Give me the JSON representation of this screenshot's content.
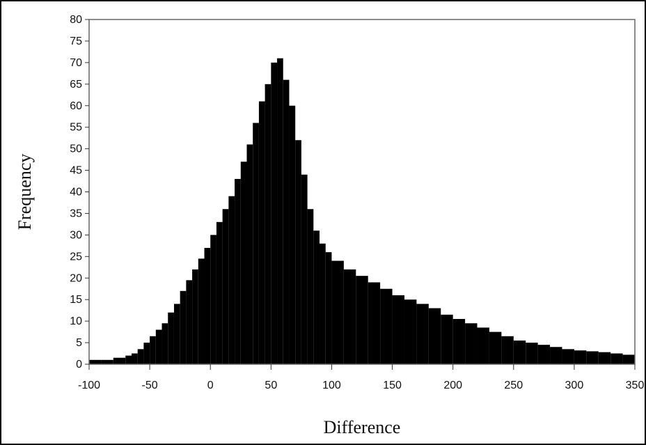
{
  "chart_data": {
    "type": "bar",
    "title": "",
    "xlabel": "Difference",
    "ylabel": "Frequency",
    "xlim": [
      -100,
      350
    ],
    "ylim": [
      0,
      80
    ],
    "xticks": [
      -100,
      -50,
      0,
      50,
      100,
      150,
      200,
      250,
      300,
      350
    ],
    "yticks": [
      0,
      5,
      10,
      15,
      20,
      25,
      30,
      35,
      40,
      45,
      50,
      55,
      60,
      65,
      70,
      75,
      80
    ],
    "grid": false,
    "bar_color": "#000000",
    "x": [
      -100,
      -90,
      -80,
      -70,
      -65,
      -60,
      -55,
      -50,
      -45,
      -40,
      -35,
      -30,
      -25,
      -20,
      -15,
      -10,
      -5,
      0,
      5,
      10,
      15,
      20,
      25,
      30,
      35,
      40,
      45,
      50,
      55,
      60,
      65,
      70,
      75,
      80,
      85,
      90,
      95,
      100,
      110,
      120,
      130,
      140,
      150,
      160,
      170,
      180,
      190,
      200,
      210,
      220,
      230,
      240,
      250,
      260,
      270,
      280,
      290,
      300,
      310,
      320,
      330,
      340,
      350
    ],
    "values": [
      1,
      1,
      1.5,
      2,
      2.5,
      3.5,
      5,
      6.5,
      8,
      9.5,
      12,
      14,
      17,
      19.5,
      22,
      24.5,
      27,
      30,
      33,
      36,
      39,
      43,
      47,
      51,
      56,
      61,
      65,
      70,
      71,
      66,
      60,
      52,
      44,
      36,
      31,
      28,
      26,
      24,
      22,
      20.5,
      19,
      17.5,
      16,
      15,
      14,
      13,
      11.5,
      10.5,
      9.5,
      8.5,
      7.5,
      6.5,
      5.5,
      5,
      4.5,
      4,
      3.5,
      3.2,
      3,
      2.8,
      2.5,
      2.2,
      2
    ]
  }
}
